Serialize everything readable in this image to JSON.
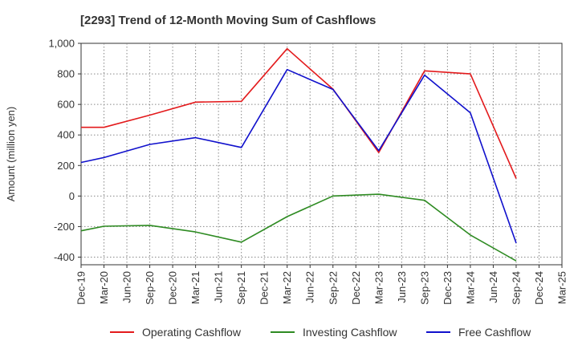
{
  "chart_data": {
    "type": "line",
    "title": "[2293]  Trend of 12-Month Moving Sum of Cashflows",
    "xlabel": "",
    "ylabel": "Amount (million yen)",
    "ylim": [
      -450,
      1000
    ],
    "yticks": [
      -400,
      -200,
      0,
      200,
      400,
      600,
      800,
      1000
    ],
    "ytick_labels": [
      "-400",
      "-200",
      "0",
      "200",
      "400",
      "600",
      "800",
      "1,000"
    ],
    "categories": [
      "Dec-19",
      "Mar-20",
      "Jun-20",
      "Sep-20",
      "Dec-20",
      "Mar-21",
      "Jun-21",
      "Sep-21",
      "Dec-21",
      "Mar-22",
      "Jun-22",
      "Sep-22",
      "Dec-22",
      "Mar-23",
      "Jun-23",
      "Sep-23",
      "Dec-23",
      "Mar-24",
      "Jun-24",
      "Sep-24",
      "Dec-24",
      "Mar-25"
    ],
    "grid": true,
    "legend_position": "bottom",
    "series": [
      {
        "name": "Operating Cashflow",
        "color": "#e31a1c",
        "points": [
          [
            0,
            450
          ],
          [
            1,
            450
          ],
          [
            3,
            530
          ],
          [
            5,
            615
          ],
          [
            7,
            620
          ],
          [
            9,
            965
          ],
          [
            11,
            700
          ],
          [
            13,
            285
          ],
          [
            15,
            820
          ],
          [
            17,
            800
          ],
          [
            19,
            115
          ]
        ]
      },
      {
        "name": "Investing Cashflow",
        "color": "#2e8b22",
        "points": [
          [
            0,
            -228
          ],
          [
            1,
            -198
          ],
          [
            3,
            -192
          ],
          [
            5,
            -235
          ],
          [
            7,
            -302
          ],
          [
            9,
            -135
          ],
          [
            11,
            0
          ],
          [
            13,
            12
          ],
          [
            15,
            -28
          ],
          [
            17,
            -255
          ],
          [
            19,
            -425
          ]
        ]
      },
      {
        "name": "Free Cashflow",
        "color": "#1010cc",
        "points": [
          [
            0,
            220
          ],
          [
            1,
            252
          ],
          [
            3,
            338
          ],
          [
            5,
            382
          ],
          [
            7,
            318
          ],
          [
            9,
            828
          ],
          [
            11,
            698
          ],
          [
            13,
            297
          ],
          [
            15,
            792
          ],
          [
            17,
            545
          ],
          [
            19,
            -308
          ]
        ]
      }
    ]
  }
}
